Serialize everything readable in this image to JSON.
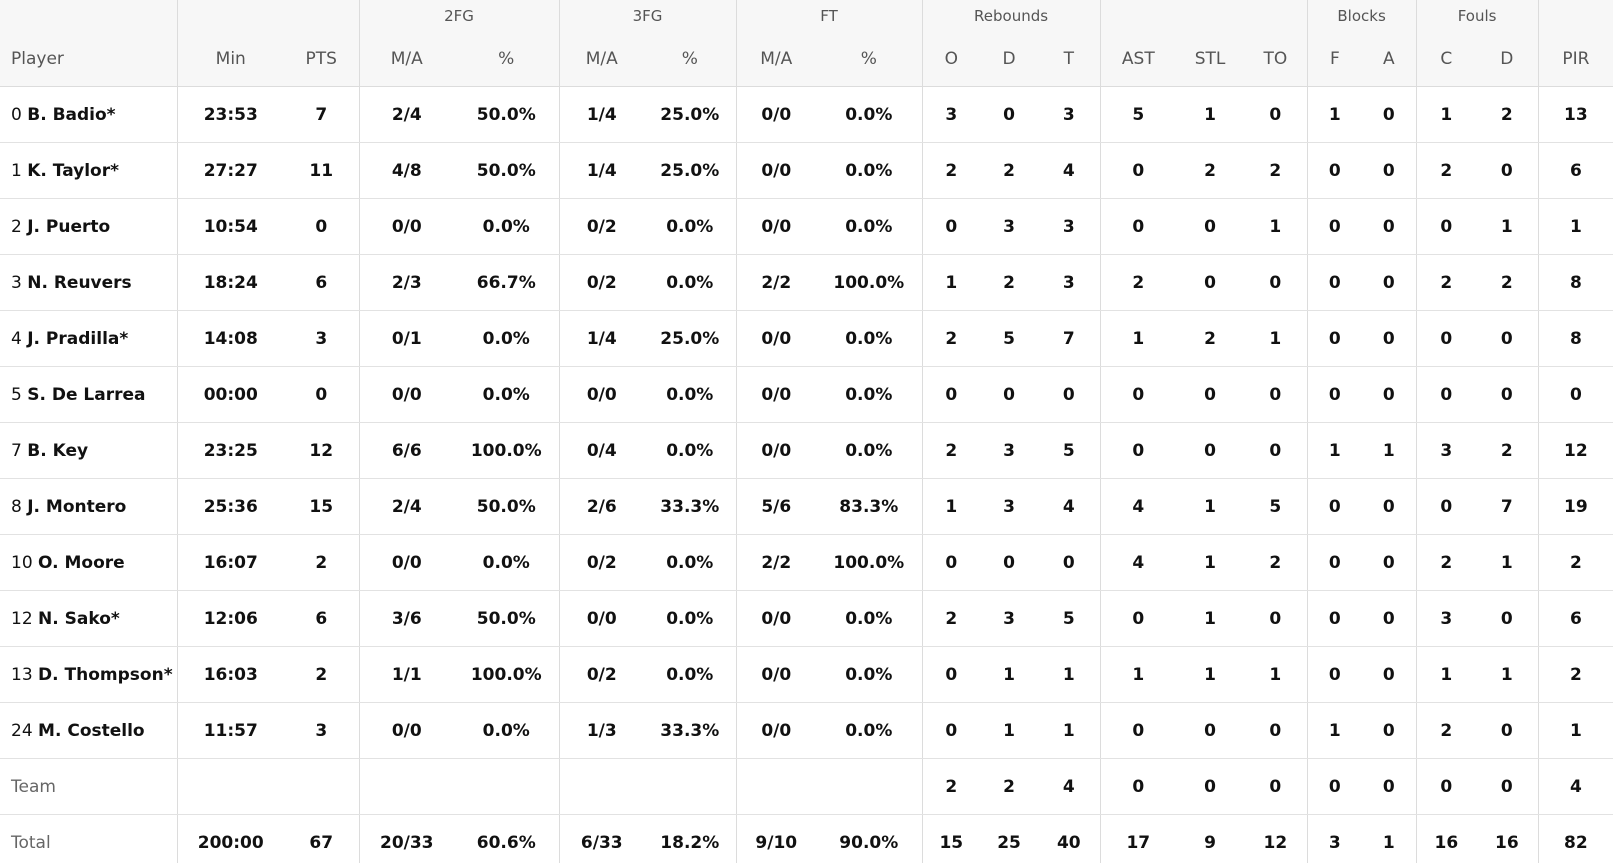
{
  "header": {
    "groups": {
      "fg2": "2FG",
      "fg3": "3FG",
      "ft": "FT",
      "rebounds": "Rebounds",
      "blocks": "Blocks",
      "fouls": "Fouls"
    },
    "cols": {
      "player": "Player",
      "min": "Min",
      "pts": "PTS",
      "fg2_ma": "M/A",
      "fg2_pct": "%",
      "fg3_ma": "M/A",
      "fg3_pct": "%",
      "ft_ma": "M/A",
      "ft_pct": "%",
      "reb_o": "O",
      "reb_d": "D",
      "reb_t": "T",
      "ast": "AST",
      "stl": "STL",
      "to": "TO",
      "blk_f": "F",
      "blk_a": "A",
      "foul_c": "C",
      "foul_d": "D",
      "pir": "PIR"
    }
  },
  "rows": [
    {
      "num": "0",
      "name": "B. Badio*",
      "min": "23:53",
      "pts": "7",
      "fg2_ma": "2/4",
      "fg2_pct": "50.0%",
      "fg3_ma": "1/4",
      "fg3_pct": "25.0%",
      "ft_ma": "0/0",
      "ft_pct": "0.0%",
      "reb_o": "3",
      "reb_d": "0",
      "reb_t": "3",
      "ast": "5",
      "stl": "1",
      "to": "0",
      "blk_f": "1",
      "blk_a": "0",
      "foul_c": "1",
      "foul_d": "2",
      "pir": "13"
    },
    {
      "num": "1",
      "name": "K. Taylor*",
      "min": "27:27",
      "pts": "11",
      "fg2_ma": "4/8",
      "fg2_pct": "50.0%",
      "fg3_ma": "1/4",
      "fg3_pct": "25.0%",
      "ft_ma": "0/0",
      "ft_pct": "0.0%",
      "reb_o": "2",
      "reb_d": "2",
      "reb_t": "4",
      "ast": "0",
      "stl": "2",
      "to": "2",
      "blk_f": "0",
      "blk_a": "0",
      "foul_c": "2",
      "foul_d": "0",
      "pir": "6"
    },
    {
      "num": "2",
      "name": "J. Puerto",
      "min": "10:54",
      "pts": "0",
      "fg2_ma": "0/0",
      "fg2_pct": "0.0%",
      "fg3_ma": "0/2",
      "fg3_pct": "0.0%",
      "ft_ma": "0/0",
      "ft_pct": "0.0%",
      "reb_o": "0",
      "reb_d": "3",
      "reb_t": "3",
      "ast": "0",
      "stl": "0",
      "to": "1",
      "blk_f": "0",
      "blk_a": "0",
      "foul_c": "0",
      "foul_d": "1",
      "pir": "1"
    },
    {
      "num": "3",
      "name": "N. Reuvers",
      "min": "18:24",
      "pts": "6",
      "fg2_ma": "2/3",
      "fg2_pct": "66.7%",
      "fg3_ma": "0/2",
      "fg3_pct": "0.0%",
      "ft_ma": "2/2",
      "ft_pct": "100.0%",
      "reb_o": "1",
      "reb_d": "2",
      "reb_t": "3",
      "ast": "2",
      "stl": "0",
      "to": "0",
      "blk_f": "0",
      "blk_a": "0",
      "foul_c": "2",
      "foul_d": "2",
      "pir": "8"
    },
    {
      "num": "4",
      "name": "J. Pradilla*",
      "min": "14:08",
      "pts": "3",
      "fg2_ma": "0/1",
      "fg2_pct": "0.0%",
      "fg3_ma": "1/4",
      "fg3_pct": "25.0%",
      "ft_ma": "0/0",
      "ft_pct": "0.0%",
      "reb_o": "2",
      "reb_d": "5",
      "reb_t": "7",
      "ast": "1",
      "stl": "2",
      "to": "1",
      "blk_f": "0",
      "blk_a": "0",
      "foul_c": "0",
      "foul_d": "0",
      "pir": "8"
    },
    {
      "num": "5",
      "name": "S. De Larrea",
      "min": "00:00",
      "pts": "0",
      "fg2_ma": "0/0",
      "fg2_pct": "0.0%",
      "fg3_ma": "0/0",
      "fg3_pct": "0.0%",
      "ft_ma": "0/0",
      "ft_pct": "0.0%",
      "reb_o": "0",
      "reb_d": "0",
      "reb_t": "0",
      "ast": "0",
      "stl": "0",
      "to": "0",
      "blk_f": "0",
      "blk_a": "0",
      "foul_c": "0",
      "foul_d": "0",
      "pir": "0"
    },
    {
      "num": "7",
      "name": "B. Key",
      "min": "23:25",
      "pts": "12",
      "fg2_ma": "6/6",
      "fg2_pct": "100.0%",
      "fg3_ma": "0/4",
      "fg3_pct": "0.0%",
      "ft_ma": "0/0",
      "ft_pct": "0.0%",
      "reb_o": "2",
      "reb_d": "3",
      "reb_t": "5",
      "ast": "0",
      "stl": "0",
      "to": "0",
      "blk_f": "1",
      "blk_a": "1",
      "foul_c": "3",
      "foul_d": "2",
      "pir": "12"
    },
    {
      "num": "8",
      "name": "J. Montero",
      "min": "25:36",
      "pts": "15",
      "fg2_ma": "2/4",
      "fg2_pct": "50.0%",
      "fg3_ma": "2/6",
      "fg3_pct": "33.3%",
      "ft_ma": "5/6",
      "ft_pct": "83.3%",
      "reb_o": "1",
      "reb_d": "3",
      "reb_t": "4",
      "ast": "4",
      "stl": "1",
      "to": "5",
      "blk_f": "0",
      "blk_a": "0",
      "foul_c": "0",
      "foul_d": "7",
      "pir": "19"
    },
    {
      "num": "10",
      "name": "O. Moore",
      "min": "16:07",
      "pts": "2",
      "fg2_ma": "0/0",
      "fg2_pct": "0.0%",
      "fg3_ma": "0/2",
      "fg3_pct": "0.0%",
      "ft_ma": "2/2",
      "ft_pct": "100.0%",
      "reb_o": "0",
      "reb_d": "0",
      "reb_t": "0",
      "ast": "4",
      "stl": "1",
      "to": "2",
      "blk_f": "0",
      "blk_a": "0",
      "foul_c": "2",
      "foul_d": "1",
      "pir": "2"
    },
    {
      "num": "12",
      "name": "N. Sako*",
      "min": "12:06",
      "pts": "6",
      "fg2_ma": "3/6",
      "fg2_pct": "50.0%",
      "fg3_ma": "0/0",
      "fg3_pct": "0.0%",
      "ft_ma": "0/0",
      "ft_pct": "0.0%",
      "reb_o": "2",
      "reb_d": "3",
      "reb_t": "5",
      "ast": "0",
      "stl": "1",
      "to": "0",
      "blk_f": "0",
      "blk_a": "0",
      "foul_c": "3",
      "foul_d": "0",
      "pir": "6"
    },
    {
      "num": "13",
      "name": "D. Thompson*",
      "min": "16:03",
      "pts": "2",
      "fg2_ma": "1/1",
      "fg2_pct": "100.0%",
      "fg3_ma": "0/2",
      "fg3_pct": "0.0%",
      "ft_ma": "0/0",
      "ft_pct": "0.0%",
      "reb_o": "0",
      "reb_d": "1",
      "reb_t": "1",
      "ast": "1",
      "stl": "1",
      "to": "1",
      "blk_f": "0",
      "blk_a": "0",
      "foul_c": "1",
      "foul_d": "1",
      "pir": "2"
    },
    {
      "num": "24",
      "name": "M. Costello",
      "min": "11:57",
      "pts": "3",
      "fg2_ma": "0/0",
      "fg2_pct": "0.0%",
      "fg3_ma": "1/3",
      "fg3_pct": "33.3%",
      "ft_ma": "0/0",
      "ft_pct": "0.0%",
      "reb_o": "0",
      "reb_d": "1",
      "reb_t": "1",
      "ast": "0",
      "stl": "0",
      "to": "0",
      "blk_f": "1",
      "blk_a": "0",
      "foul_c": "2",
      "foul_d": "0",
      "pir": "1"
    }
  ],
  "team": {
    "label": "Team",
    "reb_o": "2",
    "reb_d": "2",
    "reb_t": "4",
    "ast": "0",
    "stl": "0",
    "to": "0",
    "blk_f": "0",
    "blk_a": "0",
    "foul_c": "0",
    "foul_d": "0",
    "pir": "4"
  },
  "total": {
    "label": "Total",
    "min": "200:00",
    "pts": "67",
    "fg2_ma": "20/33",
    "fg2_pct": "60.6%",
    "fg3_ma": "6/33",
    "fg3_pct": "18.2%",
    "ft_ma": "9/10",
    "ft_pct": "90.0%",
    "reb_o": "15",
    "reb_d": "25",
    "reb_t": "40",
    "ast": "17",
    "stl": "9",
    "to": "12",
    "blk_f": "3",
    "blk_a": "1",
    "foul_c": "16",
    "foul_d": "16",
    "pir": "82"
  }
}
